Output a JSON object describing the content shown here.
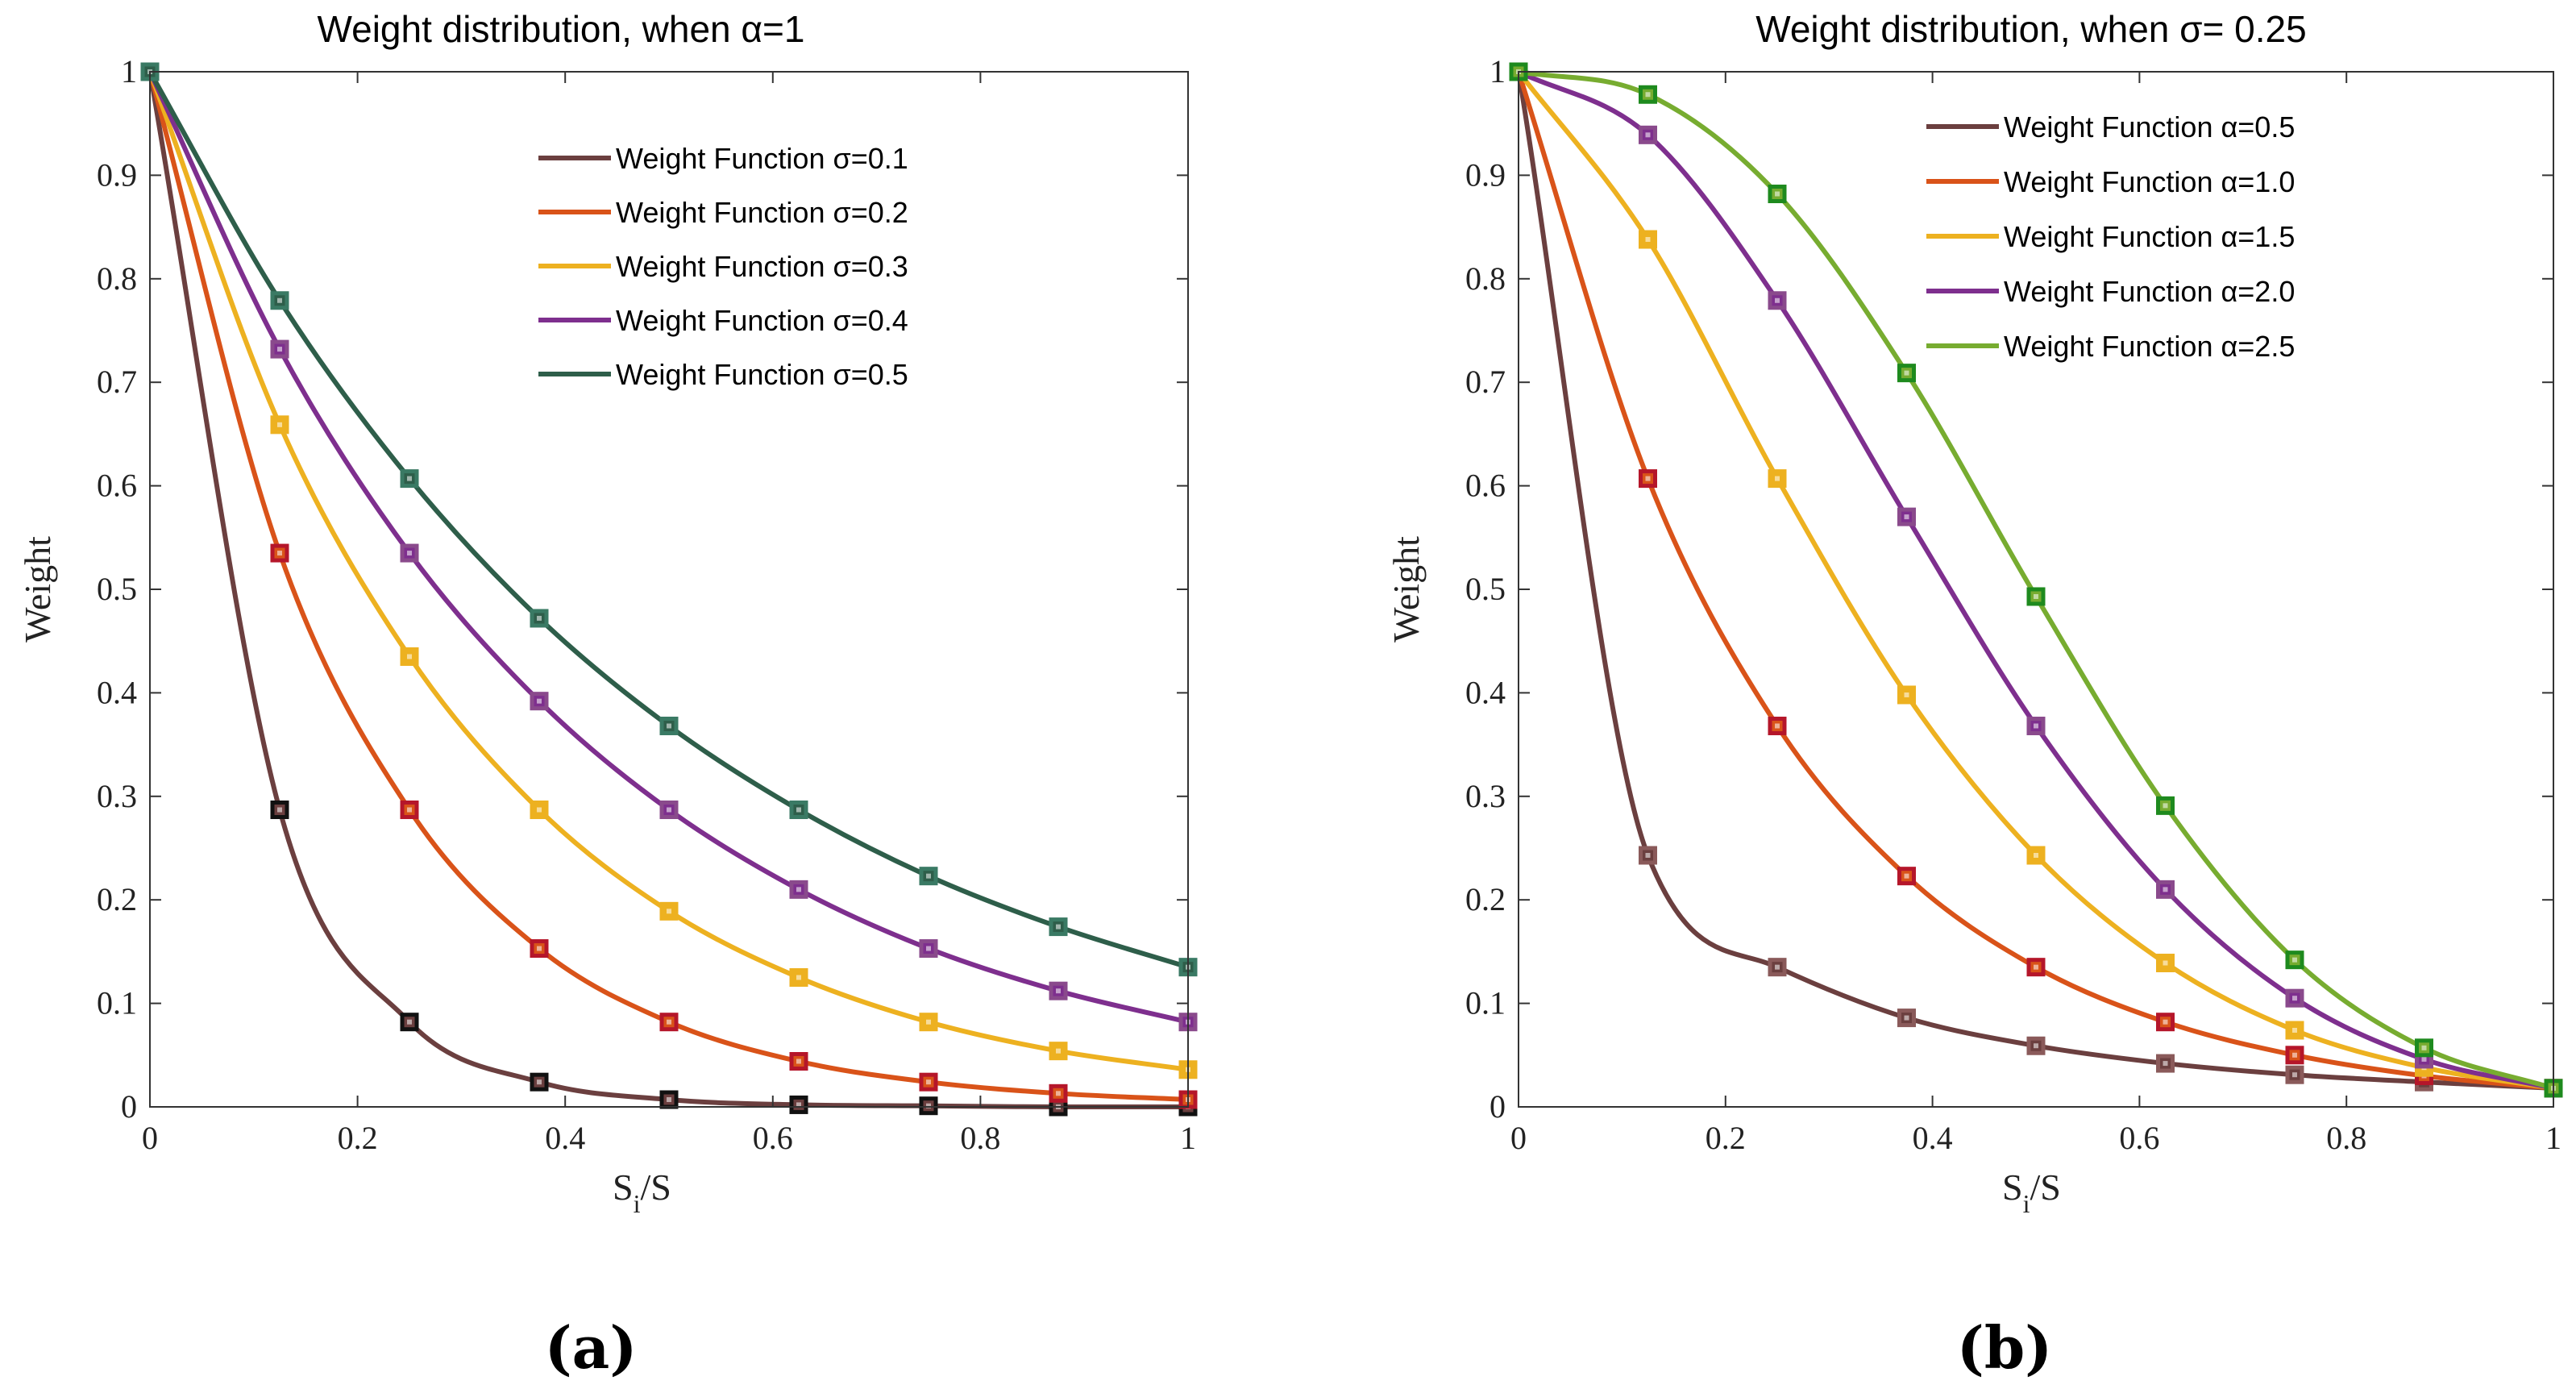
{
  "chart_data": [
    {
      "panel_label": "(a)",
      "type": "line",
      "title": "Weight distribution, when α=1",
      "xlabel": "S_i/S",
      "xlabel_main": "S",
      "xlabel_sub": "i",
      "xlabel_rest": "/S",
      "ylabel": "Weight",
      "xlim": [
        0,
        1
      ],
      "ylim": [
        0,
        1
      ],
      "xticks": [
        "0",
        "0.2",
        "0.4",
        "0.6",
        "0.8",
        "1"
      ],
      "yticks": [
        "0",
        "0.1",
        "0.2",
        "0.3",
        "0.4",
        "0.5",
        "0.6",
        "0.7",
        "0.8",
        "0.9",
        "1"
      ],
      "x": [
        0,
        0.125,
        0.25,
        0.375,
        0.5,
        0.625,
        0.75,
        0.875,
        1
      ],
      "series": [
        {
          "name": "Weight Function σ=0.1",
          "color": "#6b3f3f",
          "marker_color": "#111111",
          "values": [
            1,
            0.287,
            0.082,
            0.024,
            0.007,
            0.002,
            0.001,
            0.0,
            0.0
          ]
        },
        {
          "name": "Weight Function σ=0.2",
          "color": "#d95319",
          "marker_color": "#b5162a",
          "values": [
            1,
            0.535,
            0.287,
            0.153,
            0.082,
            0.044,
            0.024,
            0.013,
            0.007
          ]
        },
        {
          "name": "Weight Function σ=0.3",
          "color": "#edb120",
          "marker_color": "#edb120",
          "values": [
            1,
            0.659,
            0.435,
            0.287,
            0.189,
            0.125,
            0.082,
            0.054,
            0.036
          ]
        },
        {
          "name": "Weight Function σ=0.4",
          "color": "#7e2f8e",
          "marker_color": "#8a4a8c",
          "values": [
            1,
            0.732,
            0.535,
            0.392,
            0.287,
            0.21,
            0.153,
            0.112,
            0.082
          ]
        },
        {
          "name": "Weight Function σ=0.5",
          "color": "#2e5e4a",
          "marker_color": "#3a7a64",
          "values": [
            1,
            0.779,
            0.607,
            0.472,
            0.368,
            0.287,
            0.223,
            0.174,
            0.135
          ]
        }
      ]
    },
    {
      "panel_label": "(b)",
      "type": "line",
      "title": "Weight distribution, when σ= 0.25",
      "xlabel": "S_i/S",
      "xlabel_main": "S",
      "xlabel_sub": "i",
      "xlabel_rest": "/S",
      "ylabel": "Weight",
      "xlim": [
        0,
        1
      ],
      "ylim": [
        0,
        1
      ],
      "xticks": [
        "0",
        "0.2",
        "0.4",
        "0.6",
        "0.8",
        "1"
      ],
      "yticks": [
        "0",
        "0.1",
        "0.2",
        "0.3",
        "0.4",
        "0.5",
        "0.6",
        "0.7",
        "0.8",
        "0.9",
        "1"
      ],
      "x": [
        0,
        0.125,
        0.25,
        0.375,
        0.5,
        0.625,
        0.75,
        0.875,
        1
      ],
      "series": [
        {
          "name": "Weight Function α=0.5",
          "color": "#6b3f3f",
          "marker_color": "#8a5a5a",
          "values": [
            1,
            0.243,
            0.135,
            0.086,
            0.059,
            0.042,
            0.031,
            0.024,
            0.018
          ]
        },
        {
          "name": "Weight Function α=1.0",
          "color": "#d95319",
          "marker_color": "#b5162a",
          "values": [
            1,
            0.607,
            0.368,
            0.223,
            0.135,
            0.082,
            0.05,
            0.03,
            0.018
          ]
        },
        {
          "name": "Weight Function α=1.5",
          "color": "#edb120",
          "marker_color": "#edb120",
          "values": [
            1,
            0.838,
            0.607,
            0.398,
            0.243,
            0.139,
            0.074,
            0.038,
            0.018
          ]
        },
        {
          "name": "Weight Function α=2.0",
          "color": "#7e2f8e",
          "marker_color": "#8a4a8c",
          "values": [
            1,
            0.939,
            0.779,
            0.57,
            0.368,
            0.21,
            0.105,
            0.046,
            0.018
          ]
        },
        {
          "name": "Weight Function α=2.5",
          "color": "#77ac30",
          "marker_color": "#1e8a1e",
          "values": [
            1,
            0.978,
            0.882,
            0.709,
            0.493,
            0.291,
            0.142,
            0.057,
            0.018
          ]
        }
      ]
    }
  ]
}
